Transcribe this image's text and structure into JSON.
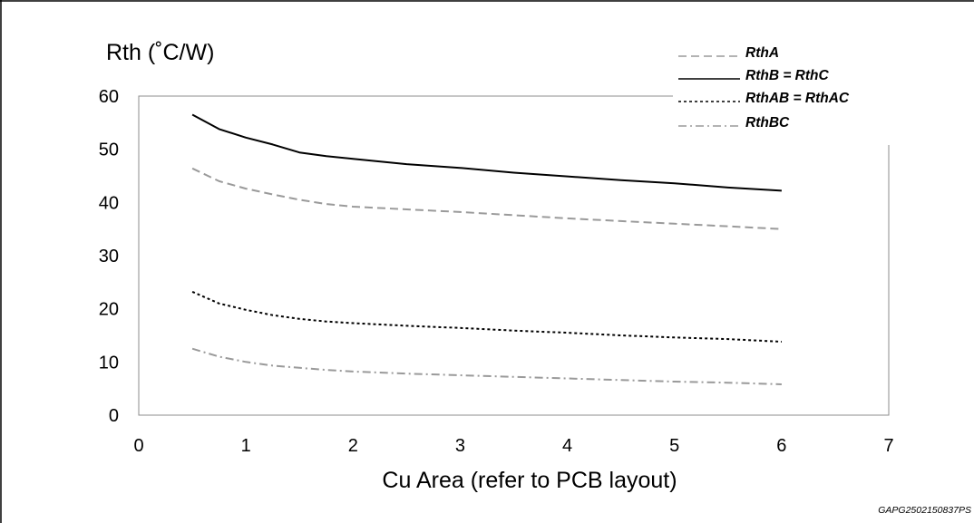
{
  "chart_data": {
    "type": "line",
    "ylabel": "Rth (˚C/W)",
    "xlabel": "Cu Area (refer to PCB layout)",
    "xlim": [
      0,
      7
    ],
    "ylim": [
      0,
      60
    ],
    "xticks": [
      "0",
      "1",
      "2",
      "3",
      "4",
      "5",
      "6",
      "7"
    ],
    "yticks": [
      "0",
      "10",
      "20",
      "30",
      "40",
      "50",
      "60"
    ],
    "x": [
      0.5,
      0.75,
      1.0,
      1.25,
      1.5,
      1.75,
      2.0,
      2.5,
      3.0,
      3.5,
      4.0,
      4.5,
      5.0,
      5.5,
      6.0
    ],
    "series": [
      {
        "name": "RthA",
        "color": "#9a9a9a",
        "dash": "dashed",
        "values": [
          46.4,
          44.0,
          42.6,
          41.5,
          40.5,
          39.7,
          39.2,
          38.7,
          38.2,
          37.6,
          37.0,
          36.5,
          36.0,
          35.5,
          35.0
        ]
      },
      {
        "name": "RthB = RthC",
        "color": "#000000",
        "dash": "solid",
        "values": [
          56.5,
          53.8,
          52.2,
          50.9,
          49.4,
          48.7,
          48.2,
          47.2,
          46.5,
          45.6,
          44.9,
          44.2,
          43.6,
          42.8,
          42.2
        ]
      },
      {
        "name": "RthAB = RthAC",
        "color": "#000000",
        "dash": "dotted",
        "values": [
          23.2,
          21.0,
          19.8,
          18.8,
          18.1,
          17.6,
          17.3,
          16.8,
          16.4,
          15.9,
          15.5,
          15.0,
          14.6,
          14.3,
          13.8
        ]
      },
      {
        "name": "RthBC",
        "color": "#9a9a9a",
        "dash": "dashdot",
        "values": [
          12.5,
          11.0,
          10.0,
          9.3,
          8.9,
          8.5,
          8.2,
          7.8,
          7.5,
          7.2,
          6.9,
          6.6,
          6.3,
          6.1,
          5.8
        ]
      }
    ],
    "grid": false,
    "legend_position": "top-right"
  },
  "footer_code": "GAPG2502150837PS"
}
